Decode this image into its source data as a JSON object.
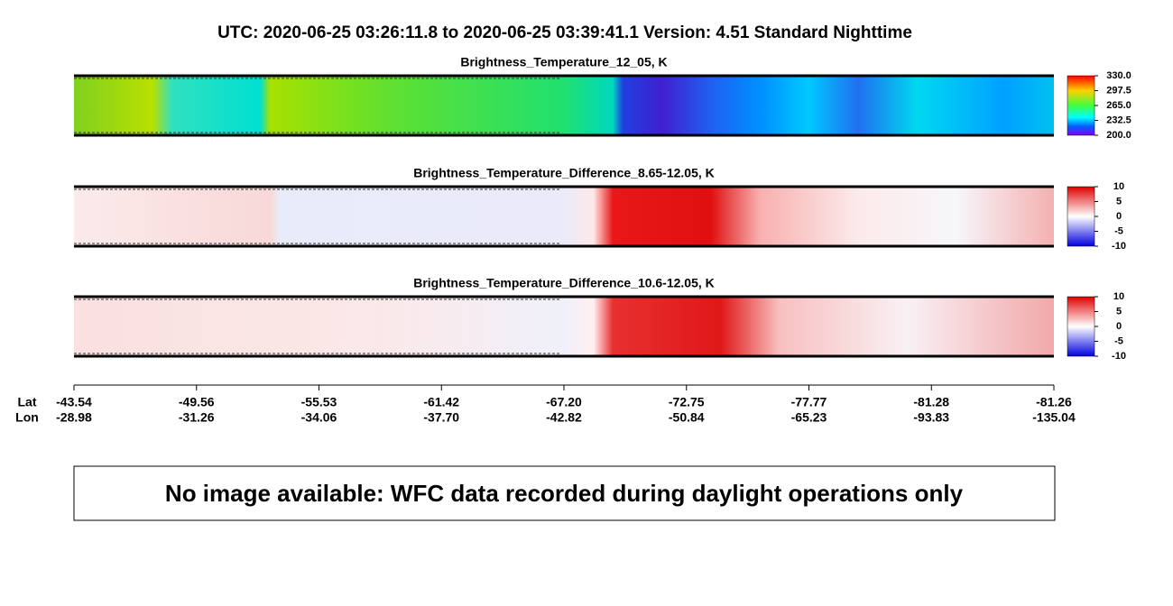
{
  "header": {
    "title": "UTC:  2020-06-25   03:26:11.8  to  2020-06-25   03:39:41.1    Version: 4.51  Standard Nighttime"
  },
  "panels": [
    {
      "title": "Brightness_Temperature_12_05, K",
      "clim": [
        200,
        330
      ],
      "ticks": [
        {
          "value": 330,
          "label": "330.0"
        },
        {
          "value": 297.5,
          "label": "297.5"
        },
        {
          "value": 265,
          "label": "265.0"
        },
        232.5,
        {
          "value": 200,
          "label": "200.0"
        }
      ]
    },
    {
      "title": "Brightness_Temperature_Difference_8.65-12.05, K",
      "clim": [
        -10,
        10
      ],
      "ticks": [
        10,
        5,
        0,
        -5,
        -10
      ]
    },
    {
      "title": "Brightness_Temperature_Difference_10.6-12.05, K",
      "clim": [
        -10,
        10
      ],
      "ticks": [
        10,
        5,
        0,
        -5,
        -10
      ]
    }
  ],
  "axis": {
    "lat_label": "Lat",
    "lon_label": "Lon",
    "lat": [
      "-43.54",
      "-49.56",
      "-55.53",
      "-61.42",
      "-67.20",
      "-72.75",
      "-77.77",
      "-81.28",
      "-81.26"
    ],
    "lon": [
      "-28.98",
      "-31.26",
      "-34.06",
      "-37.70",
      "-42.82",
      "-50.84",
      "-65.23",
      "-93.83",
      "-135.04"
    ]
  },
  "message": "No image available: WFC data recorded during daylight operations only"
}
